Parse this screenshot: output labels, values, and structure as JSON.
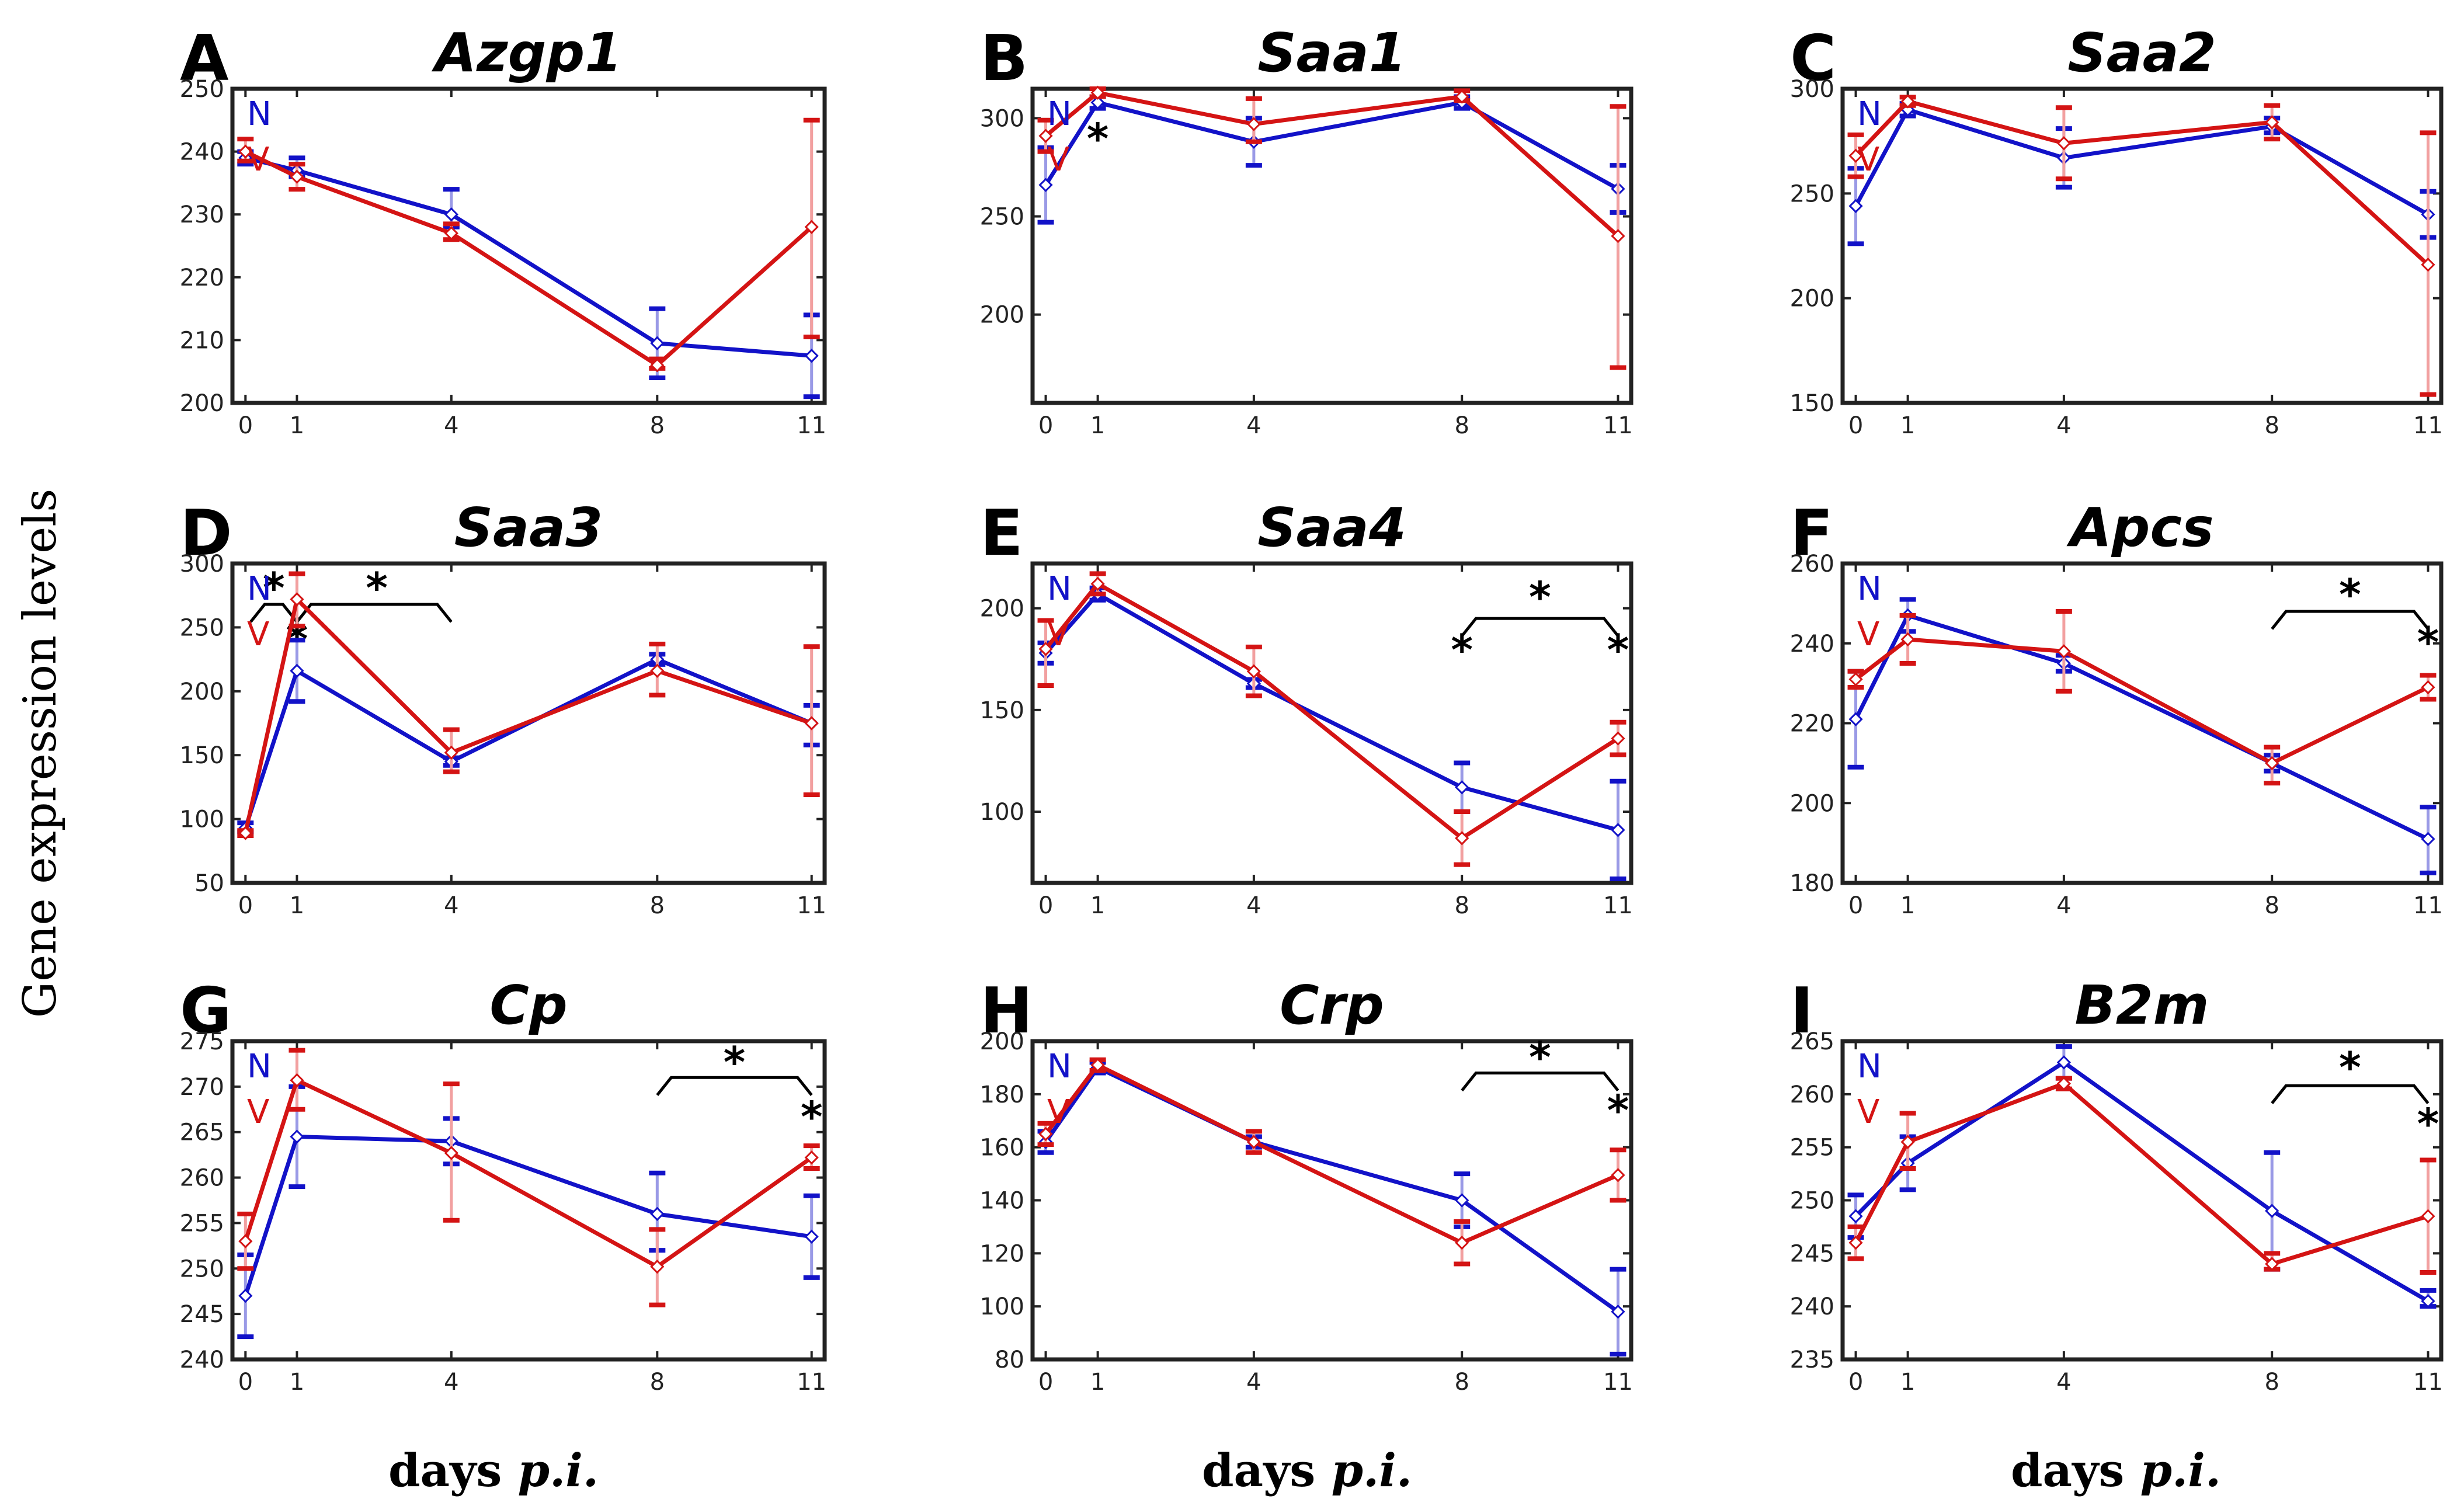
{
  "figure": {
    "ylabel": "Gene expression levels",
    "xlabel_main": "days ",
    "xlabel_italic": "p.i."
  },
  "colors": {
    "N": "#1212c8",
    "V": "#d41414",
    "axis": "#000000"
  },
  "chart_data": [
    {
      "letter": "A",
      "type": "line",
      "title": "Azgp1",
      "ylim": [
        200,
        250
      ],
      "yticks": [
        200,
        210,
        220,
        230,
        240,
        250
      ],
      "x": [
        0,
        1,
        4,
        8,
        11
      ],
      "xlabel": "days p.i.",
      "ylabel": "Gene expression levels",
      "legend": "top-left",
      "legend_labels": [
        "N",
        "V"
      ],
      "series": [
        {
          "name": "N",
          "values": [
            239,
            237,
            230,
            209.5,
            207.5
          ],
          "err_low": [
            238,
            236,
            228,
            204,
            201
          ],
          "err_high": [
            240,
            239,
            234,
            215,
            214
          ]
        },
        {
          "name": "V",
          "values": [
            240,
            236,
            227,
            206,
            228
          ],
          "err_low": [
            238.5,
            234,
            226,
            205.5,
            210.5
          ],
          "err_high": [
            242,
            238,
            228.5,
            207,
            245
          ]
        }
      ],
      "stars": [],
      "brackets": []
    },
    {
      "letter": "B",
      "type": "line",
      "title": "Saa1",
      "ylim": [
        155,
        315
      ],
      "yticks": [
        200,
        250,
        300
      ],
      "x": [
        0,
        1,
        4,
        8,
        11
      ],
      "xlabel": "days p.i.",
      "ylabel": "Gene expression levels",
      "legend": "top-left",
      "legend_labels": [
        "N",
        "V"
      ],
      "series": [
        {
          "name": "N",
          "values": [
            266,
            308,
            288,
            308,
            264
          ],
          "err_low": [
            247,
            305,
            276,
            305,
            252
          ],
          "err_high": [
            285,
            311,
            300,
            311,
            276
          ]
        },
        {
          "name": "V",
          "values": [
            291,
            313,
            297,
            311,
            240
          ],
          "err_low": [
            283,
            311,
            288,
            309,
            173
          ],
          "err_high": [
            299,
            315,
            310,
            314,
            306
          ]
        }
      ],
      "stars": [
        {
          "x": 1,
          "y": 291,
          "label": "*"
        }
      ],
      "brackets": []
    },
    {
      "letter": "C",
      "type": "line",
      "title": "Saa2",
      "ylim": [
        150,
        300
      ],
      "yticks": [
        150,
        200,
        250,
        300
      ],
      "x": [
        0,
        1,
        4,
        8,
        11
      ],
      "xlabel": "days p.i.",
      "ylabel": "Gene expression levels",
      "legend": "top-left",
      "legend_labels": [
        "N",
        "V"
      ],
      "series": [
        {
          "name": "N",
          "values": [
            244,
            290,
            267,
            282,
            240
          ],
          "err_low": [
            226,
            287,
            253,
            279,
            229
          ],
          "err_high": [
            262,
            293,
            281,
            286,
            251
          ]
        },
        {
          "name": "V",
          "values": [
            268,
            294,
            274,
            284,
            216
          ],
          "err_low": [
            258,
            292,
            257,
            276,
            154
          ],
          "err_high": [
            278,
            296,
            291,
            292,
            279
          ]
        }
      ],
      "stars": [],
      "brackets": []
    },
    {
      "letter": "D",
      "type": "line",
      "title": "Saa3",
      "ylim": [
        50,
        300
      ],
      "yticks": [
        50,
        100,
        150,
        200,
        250,
        300
      ],
      "x": [
        0,
        1,
        4,
        8,
        11
      ],
      "xlabel": "days p.i.",
      "ylabel": "Gene expression levels",
      "legend": "top-left",
      "legend_labels": [
        "N",
        "V"
      ],
      "series": [
        {
          "name": "N",
          "values": [
            93,
            216,
            145,
            225,
            175
          ],
          "err_low": [
            90,
            192,
            142,
            221,
            158
          ],
          "err_high": [
            97,
            240,
            148,
            229,
            189
          ]
        },
        {
          "name": "V",
          "values": [
            89,
            272,
            152,
            216,
            175
          ],
          "err_low": [
            87,
            251,
            137,
            197,
            119
          ],
          "err_high": [
            91,
            292,
            170,
            237,
            235
          ]
        }
      ],
      "stars": [
        {
          "x": 0.55,
          "y": 283,
          "label": "*"
        },
        {
          "x": 2.55,
          "y": 283,
          "label": "*"
        },
        {
          "x": 1,
          "y": 243,
          "label": "*"
        }
      ],
      "brackets": [
        {
          "x1": 0.1,
          "x2": 1,
          "y": 268
        },
        {
          "x1": 1,
          "x2": 4,
          "y": 268
        }
      ]
    },
    {
      "letter": "E",
      "type": "line",
      "title": "Saa4",
      "ylim": [
        65,
        222
      ],
      "yticks": [
        100,
        150,
        200
      ],
      "x": [
        0,
        1,
        4,
        8,
        11
      ],
      "xlabel": "days p.i.",
      "ylabel": "Gene expression levels",
      "legend": "top-left",
      "legend_labels": [
        "N",
        "V"
      ],
      "series": [
        {
          "name": "N",
          "values": [
            178,
            207,
            163,
            112,
            91
          ],
          "err_low": [
            173,
            204,
            161,
            100,
            67
          ],
          "err_high": [
            183,
            210,
            165,
            124,
            115
          ]
        },
        {
          "name": "V",
          "values": [
            180,
            212,
            169,
            87,
            136
          ],
          "err_low": [
            162,
            207,
            157,
            74,
            128
          ],
          "err_high": [
            194,
            217,
            181,
            100,
            144
          ]
        }
      ],
      "stars": [
        {
          "x": 9.5,
          "y": 207,
          "label": "*"
        },
        {
          "x": 8,
          "y": 181,
          "label": "*"
        },
        {
          "x": 11,
          "y": 181,
          "label": "*"
        }
      ],
      "brackets": [
        {
          "x1": 8,
          "x2": 11,
          "y": 195
        }
      ]
    },
    {
      "letter": "F",
      "type": "line",
      "title": "Apcs",
      "ylim": [
        180,
        260
      ],
      "yticks": [
        180,
        200,
        220,
        240,
        260
      ],
      "x": [
        0,
        1,
        4,
        8,
        11
      ],
      "xlabel": "days p.i.",
      "ylabel": "Gene expression levels",
      "legend": "top-left",
      "legend_labels": [
        "N",
        "V"
      ],
      "series": [
        {
          "name": "N",
          "values": [
            221,
            247,
            235,
            210,
            191
          ],
          "err_low": [
            209,
            243,
            233,
            208,
            182.5
          ],
          "err_high": [
            233,
            251,
            237,
            212,
            199
          ]
        },
        {
          "name": "V",
          "values": [
            231,
            241,
            238,
            210,
            229
          ],
          "err_low": [
            229,
            235,
            228,
            205,
            226
          ],
          "err_high": [
            233,
            247,
            248,
            214,
            232
          ]
        }
      ],
      "stars": [
        {
          "x": 9.5,
          "y": 253,
          "label": "*"
        },
        {
          "x": 11,
          "y": 241,
          "label": "*"
        }
      ],
      "brackets": [
        {
          "x1": 8,
          "x2": 11,
          "y": 248
        }
      ]
    },
    {
      "letter": "G",
      "type": "line",
      "title": "Cp",
      "ylim": [
        240,
        275
      ],
      "yticks": [
        240,
        245,
        250,
        255,
        260,
        265,
        270,
        275
      ],
      "x": [
        0,
        1,
        4,
        8,
        11
      ],
      "xlabel": "days p.i.",
      "ylabel": "Gene expression levels",
      "legend": "top-left",
      "legend_labels": [
        "N",
        "V"
      ],
      "series": [
        {
          "name": "N",
          "values": [
            247,
            264.5,
            264,
            256,
            253.5
          ],
          "err_low": [
            242.5,
            259,
            261.5,
            252,
            249
          ],
          "err_high": [
            251.5,
            270,
            266.5,
            260.5,
            258
          ]
        },
        {
          "name": "V",
          "values": [
            253,
            270.7,
            262.7,
            250.2,
            262.2
          ],
          "err_low": [
            250,
            267.5,
            255.3,
            246,
            261
          ],
          "err_high": [
            256,
            274,
            270.3,
            254.3,
            263.5
          ]
        }
      ],
      "stars": [
        {
          "x": 9.5,
          "y": 273,
          "label": "*"
        },
        {
          "x": 11,
          "y": 267,
          "label": "*"
        }
      ],
      "brackets": [
        {
          "x1": 8,
          "x2": 11,
          "y": 271
        }
      ]
    },
    {
      "letter": "H",
      "type": "line",
      "title": "Crp",
      "ylim": [
        80,
        200
      ],
      "yticks": [
        80,
        100,
        120,
        140,
        160,
        180,
        200
      ],
      "x": [
        0,
        1,
        4,
        8,
        11
      ],
      "xlabel": "days p.i.",
      "ylabel": "Gene expression levels",
      "legend": "top-left",
      "legend_labels": [
        "N",
        "V"
      ],
      "series": [
        {
          "name": "N",
          "values": [
            162,
            190,
            162,
            140,
            98
          ],
          "err_low": [
            158,
            188,
            160,
            130,
            82
          ],
          "err_high": [
            166,
            192,
            164,
            150,
            114
          ]
        },
        {
          "name": "V",
          "values": [
            165,
            191,
            162,
            124,
            149.5
          ],
          "err_low": [
            161,
            189,
            158,
            116,
            140
          ],
          "err_high": [
            169,
            193,
            166,
            132,
            159
          ]
        }
      ],
      "stars": [
        {
          "x": 9.5,
          "y": 195,
          "label": "*"
        },
        {
          "x": 11,
          "y": 175,
          "label": "*"
        }
      ],
      "brackets": [
        {
          "x1": 8,
          "x2": 11,
          "y": 188
        }
      ]
    },
    {
      "letter": "I",
      "type": "line",
      "title": "B2m",
      "ylim": [
        235,
        265
      ],
      "yticks": [
        235,
        240,
        245,
        250,
        255,
        260,
        265
      ],
      "x": [
        0,
        1,
        4,
        8,
        11
      ],
      "xlabel": "days p.i.",
      "ylabel": "Gene expression levels",
      "legend": "top-left",
      "legend_labels": [
        "N",
        "V"
      ],
      "series": [
        {
          "name": "N",
          "values": [
            248.5,
            253.5,
            263,
            249,
            240.5
          ],
          "err_low": [
            246.5,
            251,
            261.5,
            243.5,
            240
          ],
          "err_high": [
            250.5,
            256,
            264.5,
            254.5,
            241.5
          ]
        },
        {
          "name": "V",
          "values": [
            246,
            255.5,
            261,
            244,
            248.5
          ],
          "err_low": [
            244.5,
            253,
            260.5,
            243.5,
            243.2
          ],
          "err_high": [
            247.5,
            258.2,
            261.5,
            245,
            253.8
          ]
        }
      ],
      "stars": [
        {
          "x": 9.5,
          "y": 262.8,
          "label": "*"
        },
        {
          "x": 11,
          "y": 257.5,
          "label": "*"
        }
      ],
      "brackets": [
        {
          "x1": 8,
          "x2": 11,
          "y": 260.8
        }
      ]
    }
  ]
}
